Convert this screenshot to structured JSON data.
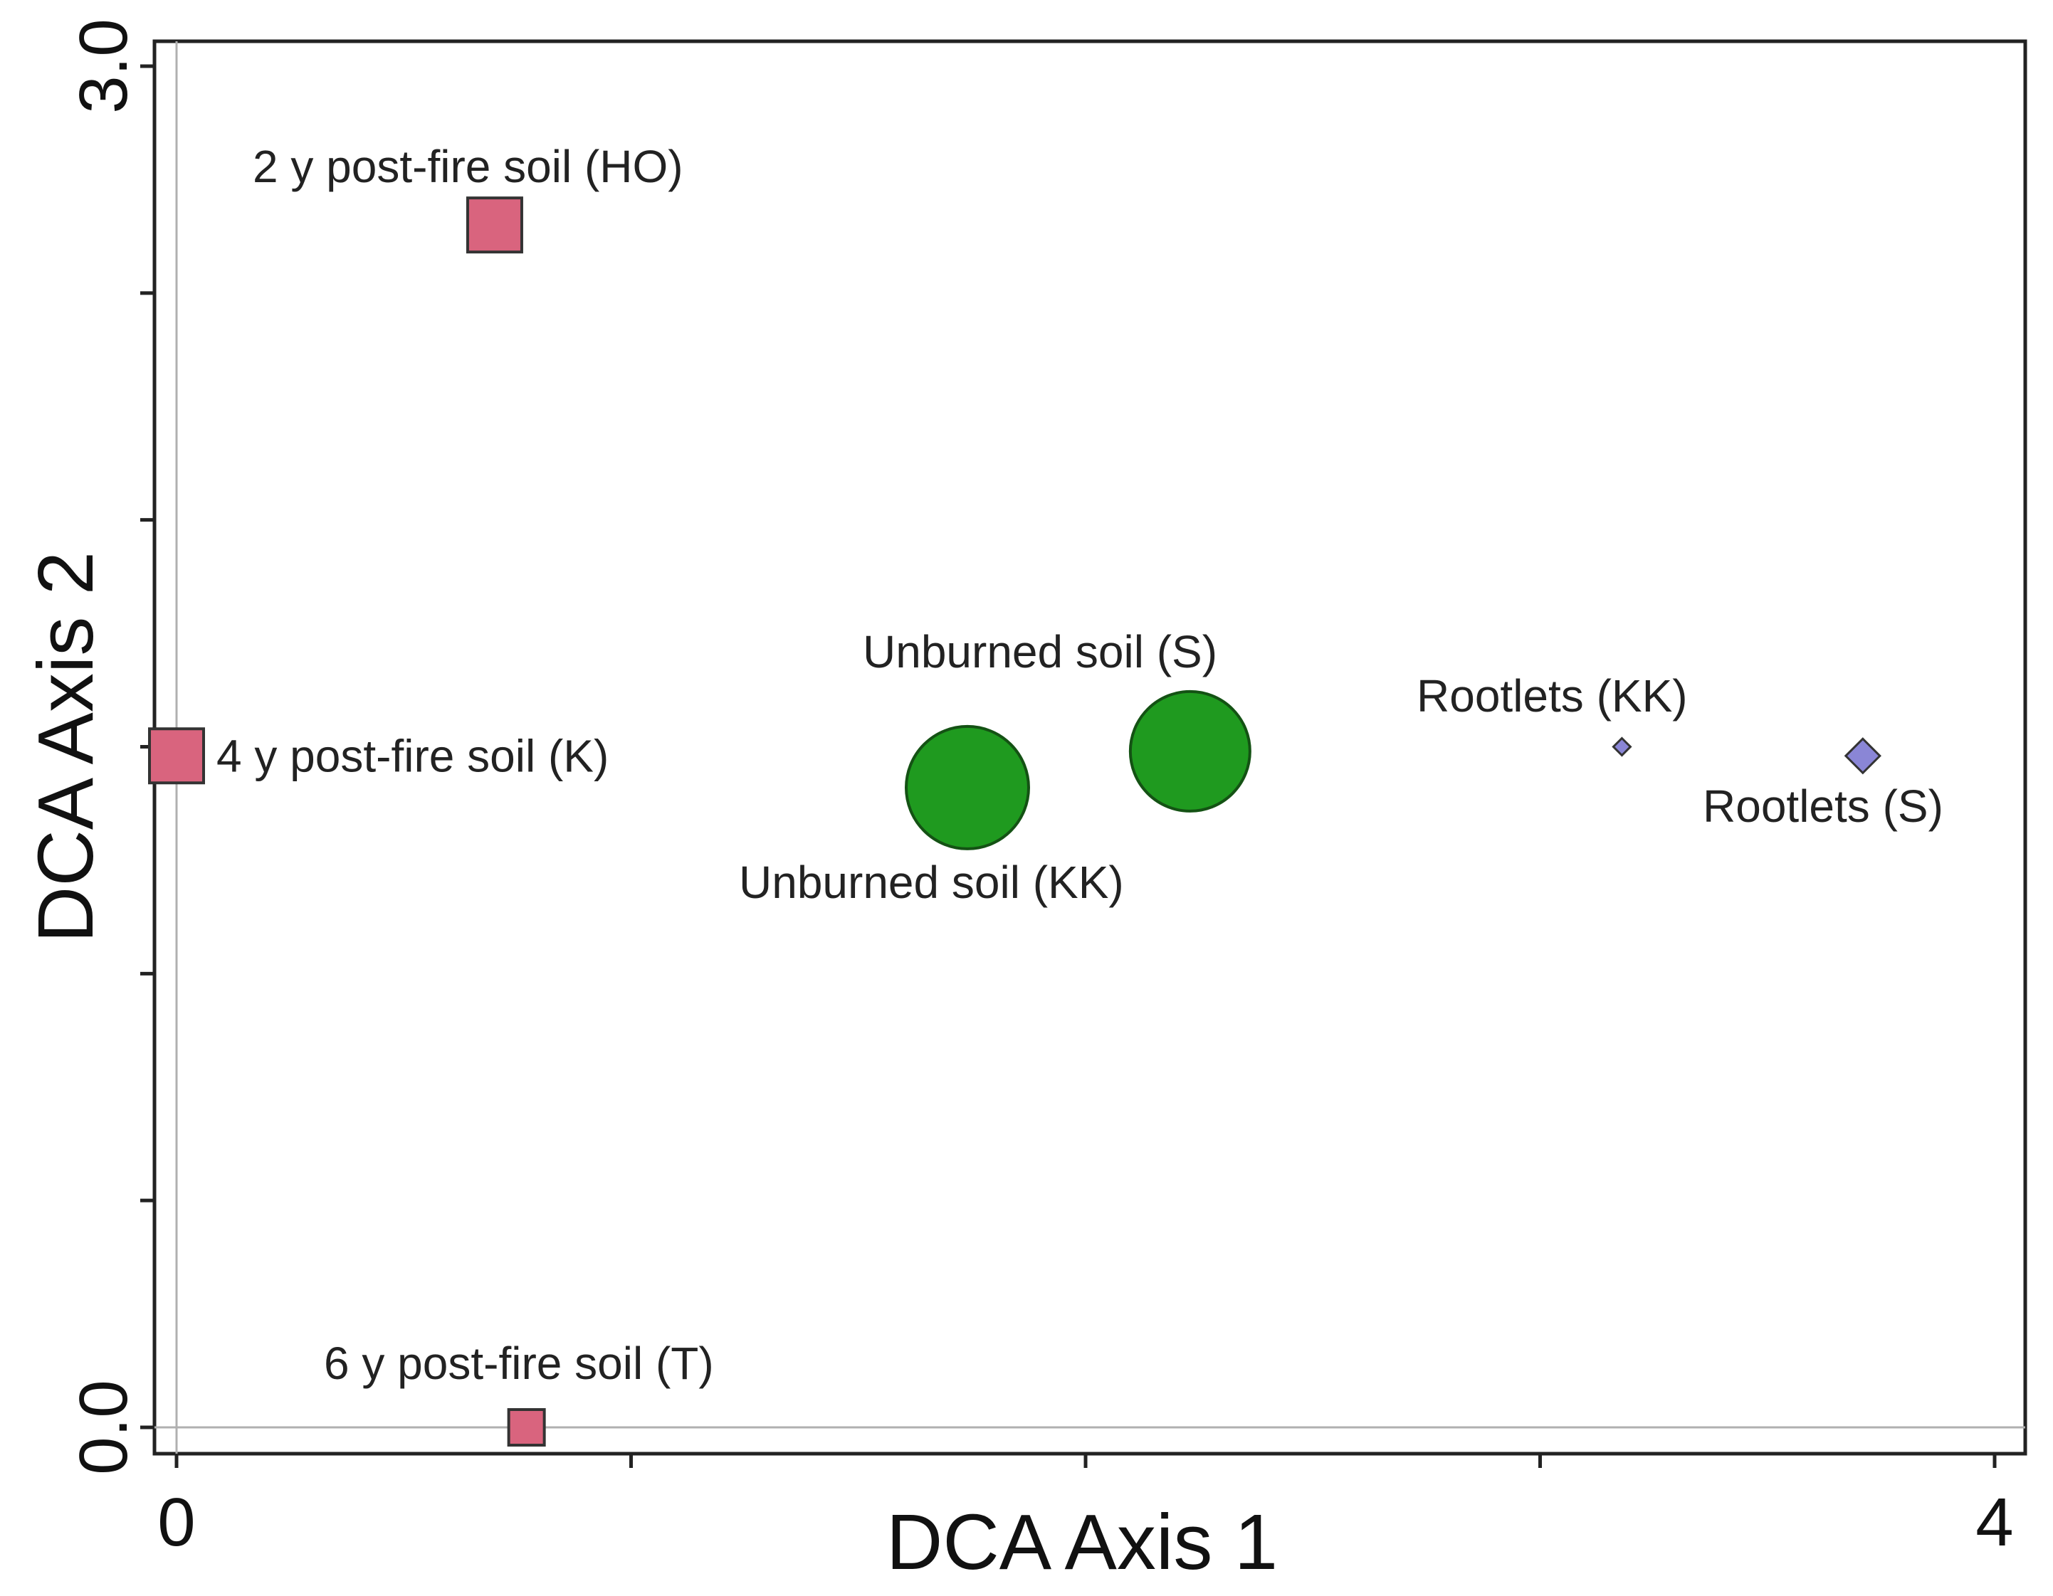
{
  "chart_data": {
    "type": "scatter",
    "title": "",
    "xlabel": "DCA Axis 1",
    "ylabel": "DCA Axis 2",
    "xlim": [
      0,
      4
    ],
    "ylim": [
      0,
      3.0
    ],
    "x_tick_labels": [
      {
        "value": 0,
        "label": "0"
      },
      {
        "value": 4,
        "label": "4"
      }
    ],
    "y_tick_labels": [
      {
        "value": 0,
        "label": "0.0"
      },
      {
        "value": 3.0,
        "label": "3.0"
      }
    ],
    "x_ticks": [
      0,
      1,
      2,
      3,
      4
    ],
    "y_ticks": [
      0,
      0.5,
      1.0,
      1.5,
      2.0,
      2.5,
      3.0
    ],
    "grid": false,
    "colors": {
      "post_fire_soil": "#d9647e",
      "unburned_soil": "#1f9a1f",
      "rootlets": "#8a86d6"
    },
    "points": [
      {
        "label": "2 y post-fire soil (HO)",
        "x": 0.7,
        "y": 2.65,
        "marker": "square",
        "color": "#d9647e",
        "label_pos": "above-left"
      },
      {
        "label": "4 y post-fire soil (K)",
        "x": 0.0,
        "y": 1.48,
        "marker": "square",
        "color": "#d9647e",
        "label_pos": "right"
      },
      {
        "label": "6 y post-fire soil (T)",
        "x": 0.77,
        "y": 0.0,
        "marker": "square",
        "color": "#d9647e",
        "label_pos": "above-left"
      },
      {
        "label": "Unburned soil (KK)",
        "x": 1.74,
        "y": 1.41,
        "marker": "circle",
        "color": "#1f9a1f",
        "label_pos": "below"
      },
      {
        "label": "Unburned soil (S)",
        "x": 2.23,
        "y": 1.49,
        "marker": "circle",
        "color": "#1f9a1f",
        "label_pos": "above-left"
      },
      {
        "label": "Rootlets (KK)",
        "x": 3.18,
        "y": 1.5,
        "marker": "diamond-small",
        "color": "#8a86d6",
        "label_pos": "above-left"
      },
      {
        "label": "Rootlets (S)",
        "x": 3.71,
        "y": 1.48,
        "marker": "diamond",
        "color": "#8a86d6",
        "label_pos": "below"
      }
    ]
  }
}
